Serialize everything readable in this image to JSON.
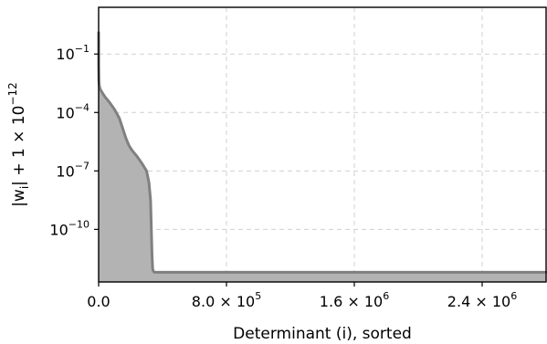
{
  "chart_data": {
    "type": "area",
    "title": "",
    "xlabel": "Determinant (i), sorted",
    "ylabel": {
      "base": "|w",
      "subscript": "i",
      "rest": "| + 1 × 10",
      "superscript": "−12"
    },
    "xlim": [
      0,
      2800000
    ],
    "ylim_log10": [
      -12.7,
      1.4
    ],
    "y_scale": "log",
    "grid": true,
    "x_ticks": [
      {
        "value": 0,
        "mantissa": "0.0",
        "exp": ""
      },
      {
        "value": 800000,
        "mantissa": "8.0 × 10",
        "exp": "5"
      },
      {
        "value": 1600000,
        "mantissa": "1.6 × 10",
        "exp": "6"
      },
      {
        "value": 2400000,
        "mantissa": "2.4 × 10",
        "exp": "6"
      }
    ],
    "y_ticks": [
      {
        "log10": -1,
        "base": "10",
        "exp": "−1"
      },
      {
        "log10": -4,
        "base": "10",
        "exp": "−4"
      },
      {
        "log10": -7,
        "base": "10",
        "exp": "−7"
      },
      {
        "log10": -10,
        "base": "10",
        "exp": "−10"
      }
    ],
    "series": [
      {
        "x": [
          0,
          500,
          2000,
          5000,
          10000,
          20000,
          40000,
          70000,
          100000,
          130000,
          150000,
          170000,
          190000,
          210000,
          240000,
          270000,
          300000,
          315000,
          325000,
          330000,
          334000,
          338000,
          342000,
          346000,
          350000,
          360000,
          400000,
          800000,
          1600000,
          2400000,
          2800000
        ],
        "log10_y": [
          0.1,
          -1.6,
          -2.4,
          -2.65,
          -2.8,
          -2.95,
          -3.2,
          -3.5,
          -3.85,
          -4.3,
          -4.8,
          -5.3,
          -5.7,
          -5.95,
          -6.25,
          -6.6,
          -7.0,
          -7.6,
          -8.5,
          -10.0,
          -11.3,
          -12.0,
          -12.15,
          -12.18,
          -12.2,
          -12.2,
          -12.2,
          -12.2,
          -12.2,
          -12.2,
          -12.2
        ],
        "line_color": "#808080",
        "fill_color": "#b3b3b3"
      }
    ]
  }
}
